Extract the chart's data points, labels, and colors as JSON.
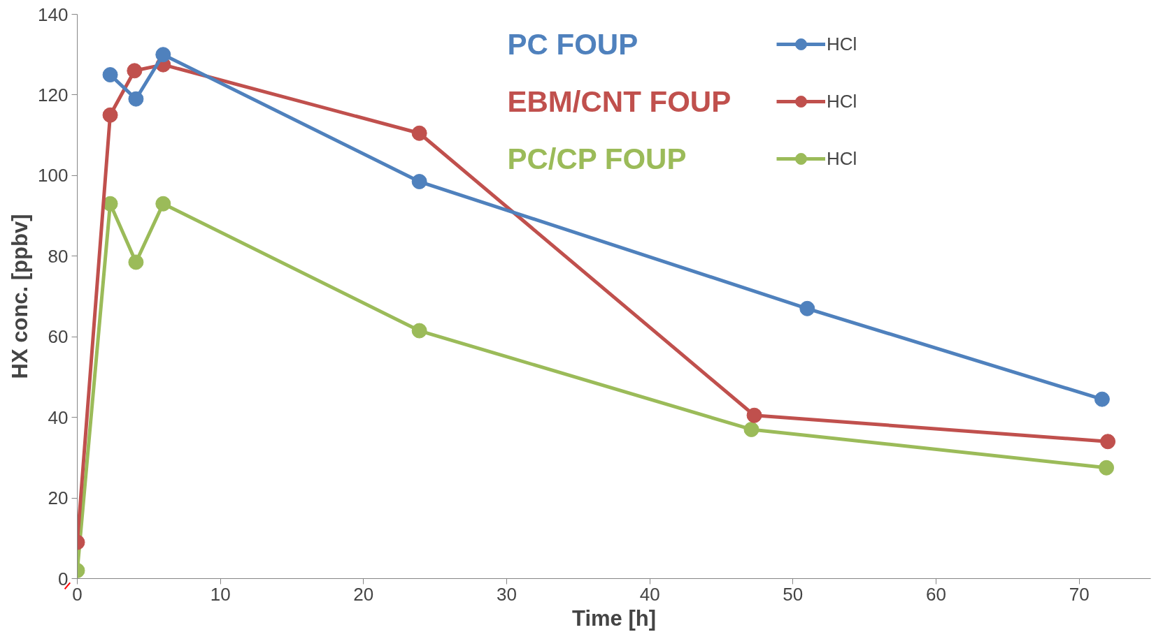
{
  "chart_data": {
    "type": "line",
    "xlabel": "Time [h]",
    "ylabel": "HX conc. [ppbv]",
    "xlim": [
      0,
      75
    ],
    "xticks": [
      0,
      10,
      20,
      30,
      40,
      50,
      60,
      70
    ],
    "ylim": [
      0,
      140
    ],
    "yticks": [
      0,
      20,
      40,
      60,
      80,
      100,
      120,
      140
    ],
    "grid": false,
    "legend": "top",
    "marker": "circle",
    "line_style": "solid",
    "annotations": [
      "PC FOUP",
      "EBM/CNT FOUP",
      "PC/CP FOUP"
    ],
    "series": [
      {
        "name": "HCl",
        "color": "#4f81bd",
        "x": [
          2.3,
          4.1,
          6.0,
          23.9,
          51.0,
          71.6
        ],
        "values": [
          125,
          119,
          130,
          98.5,
          67,
          44.5
        ]
      },
      {
        "name": "HCl",
        "color": "#c0504d",
        "x": [
          0,
          2.3,
          4.0,
          6.0,
          23.9,
          47.3,
          72.0
        ],
        "values": [
          9,
          115,
          126,
          127.5,
          110.5,
          40.5,
          34
        ]
      },
      {
        "name": "HCl",
        "color": "#9bbb59",
        "x": [
          0,
          2.3,
          4.1,
          6.0,
          23.9,
          47.1,
          71.9
        ],
        "values": [
          2,
          93,
          78.5,
          93,
          61.5,
          37,
          27.5
        ]
      }
    ]
  }
}
